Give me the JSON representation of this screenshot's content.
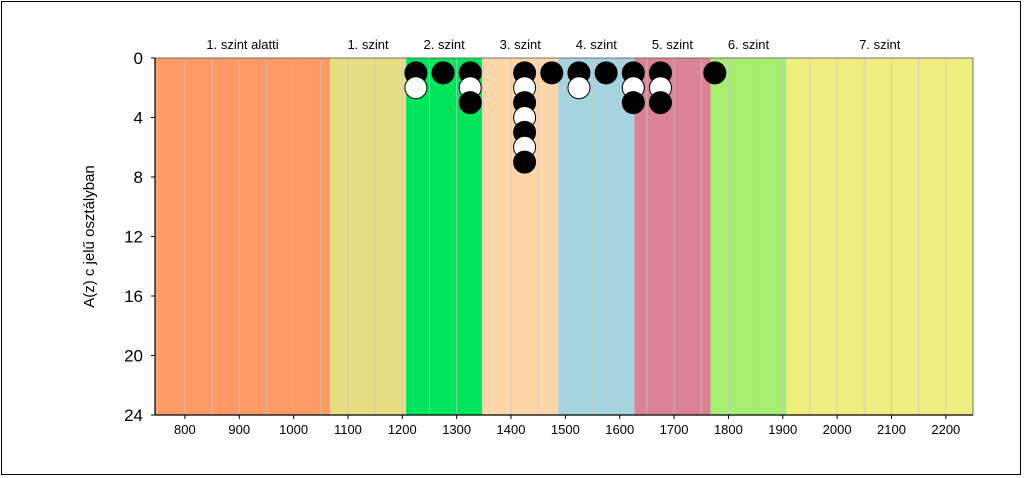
{
  "chart_data": {
    "type": "scatter",
    "title": "",
    "xlabel": "",
    "ylabel": "A(z) c jelű osztályban",
    "xlim": [
      745,
      2250
    ],
    "ylim": [
      24,
      0
    ],
    "y_inverted": true,
    "grid": "vertical",
    "x_ticks": [
      800,
      900,
      1000,
      1100,
      1200,
      1300,
      1400,
      1500,
      1600,
      1700,
      1800,
      1900,
      2000,
      2100,
      2200
    ],
    "y_ticks": [
      0,
      4,
      8,
      12,
      16,
      20,
      24
    ],
    "bands": [
      {
        "label": "1. szint alatti",
        "x_from": 745,
        "x_to": 1067,
        "color": "#FF9966"
      },
      {
        "label": "1. szint",
        "x_from": 1067,
        "x_to": 1207,
        "color": "#E8DD80"
      },
      {
        "label": "2. szint",
        "x_from": 1207,
        "x_to": 1347,
        "color": "#00E65C"
      },
      {
        "label": "3. szint",
        "x_from": 1347,
        "x_to": 1487,
        "color": "#FFD5AA"
      },
      {
        "label": "4. szint",
        "x_from": 1487,
        "x_to": 1627,
        "color": "#A6D3E0"
      },
      {
        "label": "5. szint",
        "x_from": 1627,
        "x_to": 1767,
        "color": "#DB8395"
      },
      {
        "label": "6. szint",
        "x_from": 1767,
        "x_to": 1907,
        "color": "#A6EE70"
      },
      {
        "label": "7. szint",
        "x_from": 1907,
        "x_to": 2250,
        "color": "#EEEE80"
      }
    ],
    "series": [
      {
        "marker": "filled-circle",
        "color": "#000000",
        "points": [
          {
            "x": 1225,
            "y": 1
          },
          {
            "x": 1275,
            "y": 1
          },
          {
            "x": 1325,
            "y": 1
          },
          {
            "x": 1325,
            "y": 3
          },
          {
            "x": 1425,
            "y": 1
          },
          {
            "x": 1425,
            "y": 3
          },
          {
            "x": 1425,
            "y": 5
          },
          {
            "x": 1425,
            "y": 7
          },
          {
            "x": 1475,
            "y": 1
          },
          {
            "x": 1525,
            "y": 1
          },
          {
            "x": 1575,
            "y": 1
          },
          {
            "x": 1625,
            "y": 1
          },
          {
            "x": 1625,
            "y": 3
          },
          {
            "x": 1675,
            "y": 1
          },
          {
            "x": 1675,
            "y": 3
          },
          {
            "x": 1775,
            "y": 1
          }
        ]
      },
      {
        "marker": "open-circle",
        "color": "#000000",
        "points": [
          {
            "x": 1225,
            "y": 2
          },
          {
            "x": 1325,
            "y": 2
          },
          {
            "x": 1425,
            "y": 2
          },
          {
            "x": 1425,
            "y": 4
          },
          {
            "x": 1425,
            "y": 6
          },
          {
            "x": 1525,
            "y": 2
          },
          {
            "x": 1625,
            "y": 2
          },
          {
            "x": 1675,
            "y": 2
          }
        ]
      }
    ]
  }
}
